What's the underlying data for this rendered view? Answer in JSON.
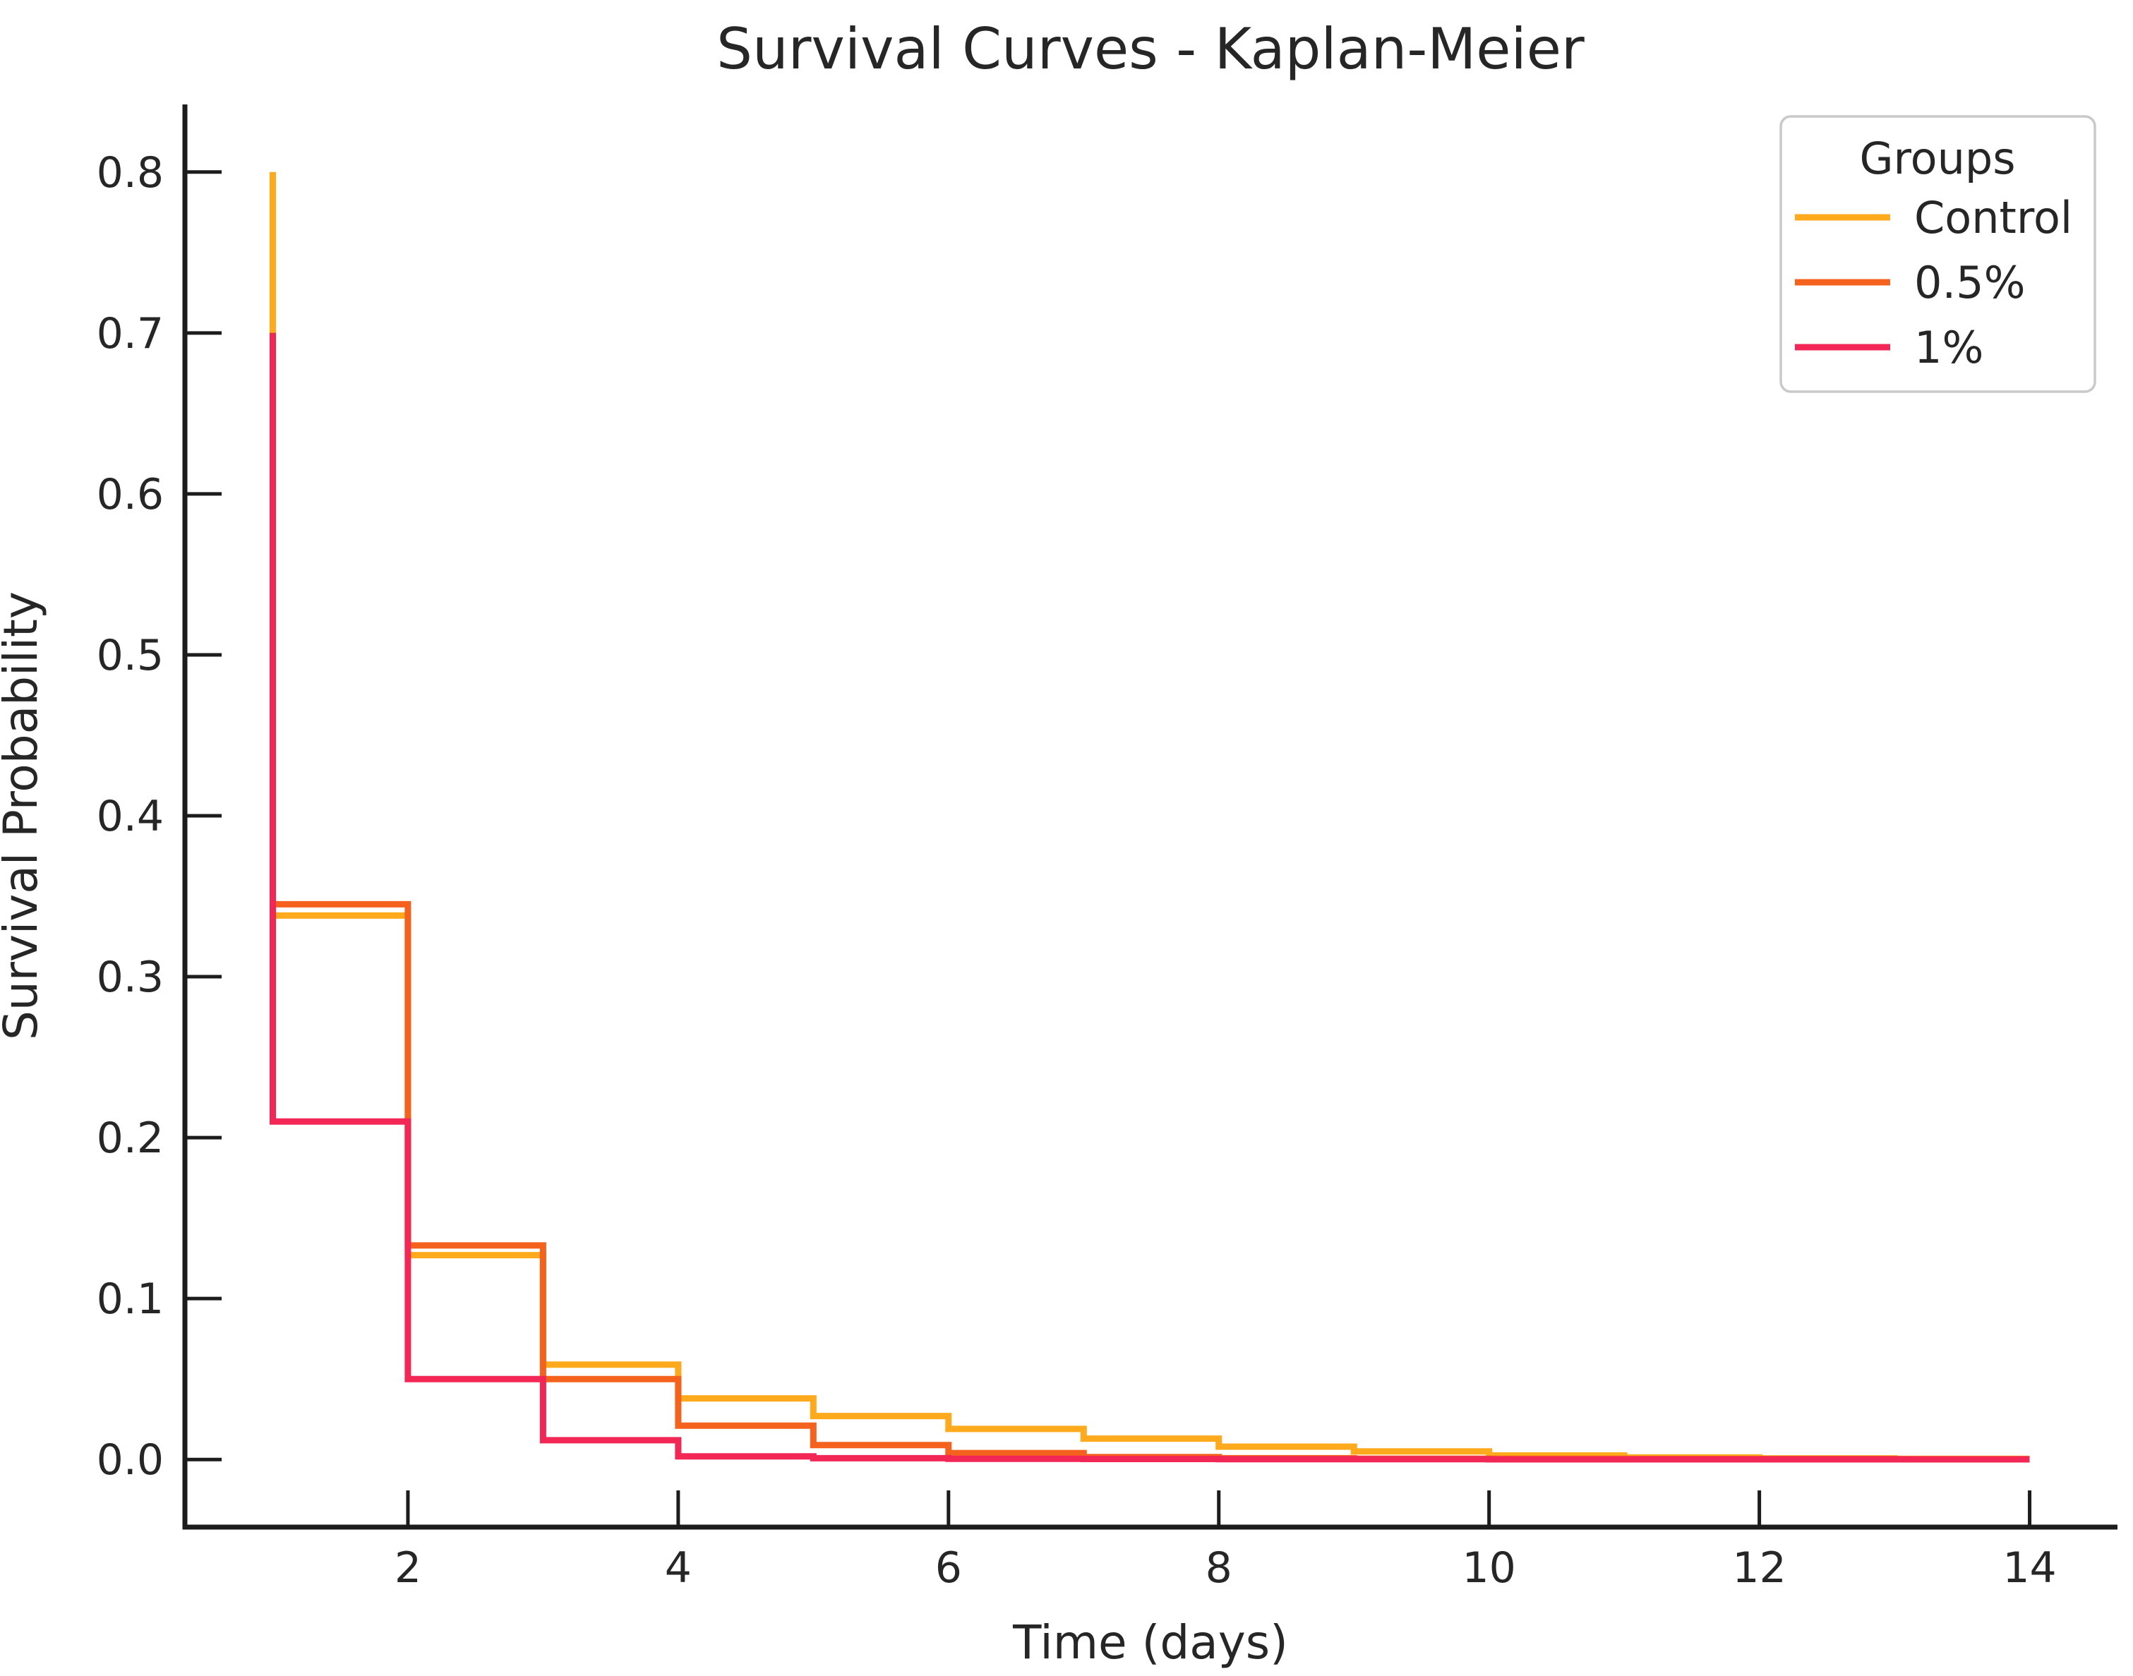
{
  "figure": {
    "background": "#ffffff",
    "text_color": "#262626",
    "spine_color": "#1c1c1c"
  },
  "chart_data": {
    "type": "line",
    "subtype": "kaplan-meier-step",
    "step": "pre",
    "title": "Survival Curves - Kaplan-Meier",
    "xlabel": "Time (days)",
    "ylabel": "Survival Probability",
    "grid": false,
    "x": [
      1,
      2,
      3,
      4,
      5,
      6,
      7,
      8,
      9,
      10,
      11,
      12,
      13,
      14
    ],
    "series": [
      {
        "name": "Control",
        "color": "#FFA91C",
        "values": [
          0.8,
          0.338,
          0.127,
          0.059,
          0.038,
          0.027,
          0.019,
          0.013,
          0.008,
          0.005,
          0.0025,
          0.0013,
          0.0007,
          0.0004
        ]
      },
      {
        "name": "0.5%",
        "color": "#F4621D",
        "values": [
          0.7,
          0.345,
          0.133,
          0.05,
          0.021,
          0.009,
          0.004,
          0.0015,
          0.0008,
          0.0005,
          0.0004,
          0.0003,
          0.0003,
          0.0002
        ]
      },
      {
        "name": "1%",
        "color": "#F22756",
        "values": [
          0.7,
          0.21,
          0.05,
          0.012,
          0.002,
          0.0008,
          0.0004,
          0.0003,
          0.0002,
          0.0002,
          0.0001,
          0.0001,
          0.0001,
          0.0001
        ]
      }
    ],
    "xticks": {
      "values": [
        2,
        4,
        6,
        8,
        10,
        12,
        14
      ],
      "labels": [
        "2",
        "4",
        "6",
        "8",
        "10",
        "12",
        "14"
      ]
    },
    "yticks": {
      "values": [
        0.0,
        0.1,
        0.2,
        0.3,
        0.4,
        0.5,
        0.6,
        0.7,
        0.8
      ],
      "labels": [
        "0.0",
        "0.1",
        "0.2",
        "0.3",
        "0.4",
        "0.5",
        "0.6",
        "0.7",
        "0.8"
      ]
    },
    "xlim": [
      0.35,
      14.65
    ],
    "ylim": [
      -0.042,
      0.842
    ],
    "legend": {
      "title": "Groups",
      "position": "upper right",
      "entries": [
        {
          "label": "Control",
          "color": "#FFA91C"
        },
        {
          "label": "0.5%",
          "color": "#F4621D"
        },
        {
          "label": "1%",
          "color": "#F22756"
        }
      ]
    }
  }
}
